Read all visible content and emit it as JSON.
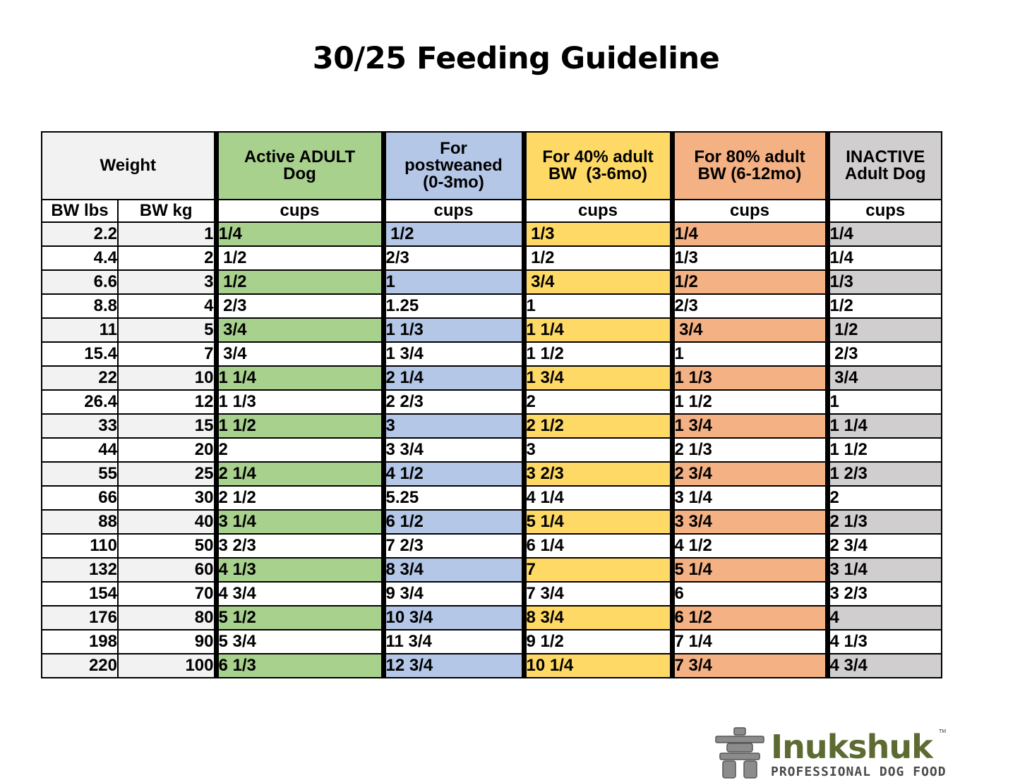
{
  "title": "30/25 Feeding Guideline",
  "headers": {
    "weight": "Weight",
    "lbs": "BW lbs",
    "kg": "BW kg",
    "active_line1": "Active ADULT",
    "active_line2": "Dog",
    "post_line1": "For",
    "post_line2": "postweaned",
    "post_line3": "(0-3mo)",
    "p40_line1": "For 40% adult",
    "p40_line2": "BW  (3-6mo)",
    "p80_line1": "For 80% adult",
    "p80_line2": "BW (6-12mo)",
    "inactive_line1": "INACTIVE",
    "inactive_line2": "Adult Dog",
    "unit": "cups"
  },
  "colors": {
    "active": "#a9d18e",
    "postweaned": "#b4c7e7",
    "p40": "#ffd966",
    "p80": "#f4b183",
    "inactive": "#d0cece",
    "weight_shade": "#f2f2f2"
  },
  "rows": [
    [
      "2.2",
      "1",
      "1/4",
      " 1/2",
      " 1/3",
      "1/4",
      "1/4"
    ],
    [
      "4.4",
      "2",
      " 1/2",
      "2/3",
      " 1/2",
      "1/3",
      "1/4"
    ],
    [
      "6.6",
      "3",
      " 1/2",
      "1",
      " 3/4",
      "1/2",
      "1/3"
    ],
    [
      "8.8",
      "4",
      " 2/3",
      "1.25",
      "1",
      "2/3",
      "1/2"
    ],
    [
      "11",
      "5",
      " 3/4",
      "1 1/3",
      "1 1/4",
      " 3/4",
      " 1/2"
    ],
    [
      "15.4",
      "7",
      " 3/4",
      "1 3/4",
      "1 1/2",
      "1",
      " 2/3"
    ],
    [
      "22",
      "10",
      "1 1/4",
      "2 1/4",
      "1 3/4",
      "1 1/3",
      " 3/4"
    ],
    [
      "26.4",
      "12",
      "1 1/3",
      "2 2/3",
      "2",
      "1 1/2",
      "1"
    ],
    [
      "33",
      "15",
      "1 1/2",
      "3",
      "2 1/2",
      "1 3/4",
      "1 1/4"
    ],
    [
      "44",
      "20",
      "2",
      "3 3/4",
      "3",
      "2 1/3",
      "1 1/2"
    ],
    [
      "55",
      "25",
      "2 1/4",
      "4 1/2",
      "3 2/3",
      "2 3/4",
      "1 2/3"
    ],
    [
      "66",
      "30",
      "2 1/2",
      "5.25",
      "4 1/4",
      "3 1/4",
      "2"
    ],
    [
      "88",
      "40",
      "3 1/4",
      "6 1/2",
      "5 1/4",
      "3 3/4",
      "2 1/3"
    ],
    [
      "110",
      "50",
      "3 2/3",
      "7 2/3",
      "6 1/4",
      "4 1/2",
      "2 3/4"
    ],
    [
      "132",
      "60",
      "4 1/3",
      "8 3/4",
      "7",
      "5 1/4",
      "3 1/4"
    ],
    [
      "154",
      "70",
      "4 3/4",
      "9 3/4",
      "7 3/4",
      "6",
      "3 2/3"
    ],
    [
      "176",
      "80",
      "5 1/2",
      "10 3/4",
      "8 3/4",
      "6 1/2",
      "4"
    ],
    [
      "198",
      "90",
      "5 3/4",
      "11 3/4",
      "9 1/2",
      "7 1/4",
      "4 1/3"
    ],
    [
      "220",
      "100",
      "6 1/3",
      "12 3/4",
      "10 1/4",
      "7 3/4",
      "4 3/4"
    ]
  ],
  "logo": {
    "name": "Inukshuk",
    "tagline": "PROFESSIONAL DOG FOOD",
    "mark": "TM",
    "icon": "inukshuk-stone-figure-icon",
    "name_color": "#5d6b33"
  }
}
